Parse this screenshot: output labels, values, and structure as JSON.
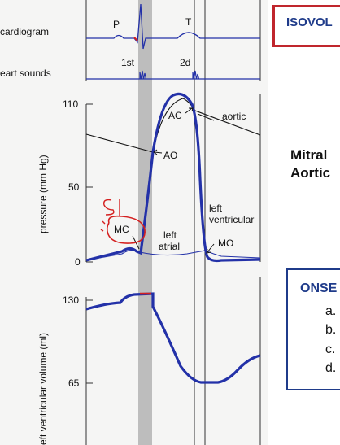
{
  "figure": {
    "trace_labels": {
      "ecg": "cardiogram",
      "sounds": "eart sounds"
    },
    "ecg_waves": {
      "p": "P",
      "t": "T"
    },
    "heart_sounds": {
      "first": "1st",
      "second": "2d"
    },
    "pressure_axis": {
      "title": "pressure (mm Hg)",
      "ticks": [
        "110",
        "50",
        "0"
      ]
    },
    "volume_axis": {
      "title": "eft ventricular volume (ml)",
      "ticks": [
        "130",
        "65"
      ]
    },
    "curve_labels": {
      "aortic": "aortic",
      "left_ventricular_line1": "left",
      "left_ventricular_line2": "ventricular",
      "left_atrial_line1": "left",
      "left_atrial_line2": "atrial"
    },
    "valve_events": {
      "ac": "AC",
      "ao": "AO",
      "mc": "MC",
      "mo": "MO"
    },
    "annotation_handwritten": "S1",
    "colors": {
      "ventricle_curve": "#2331a8",
      "highlight": "#d42020",
      "shade": "#bdbdbd"
    }
  },
  "slide": {
    "title_box": "ISOVOL",
    "valves_line1": "Mitral",
    "valves_line2": "Aortic",
    "onset_title": "ONSE",
    "onset_items": [
      "a.",
      "b.",
      "c.",
      "d."
    ]
  }
}
